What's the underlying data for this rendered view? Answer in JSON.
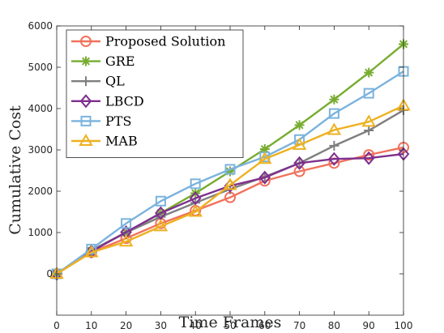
{
  "chart_data": {
    "type": "line",
    "title": "",
    "xlabel": "Time Frames",
    "ylabel": "Cumulative Cost",
    "xlim": [
      0,
      100
    ],
    "ylim": [
      -1000,
      6000
    ],
    "x_ticks": [
      0,
      10,
      20,
      30,
      40,
      50,
      60,
      70,
      80,
      90,
      100
    ],
    "y_ticks": [
      0,
      1000,
      2000,
      3000,
      4000,
      5000,
      6000
    ],
    "grid": false,
    "legend_position": "top-left",
    "x": [
      0,
      10,
      20,
      30,
      40,
      50,
      60,
      70,
      80,
      90,
      100
    ],
    "series": [
      {
        "name": "Proposed Solution",
        "color": "#f0725c",
        "marker": "circle",
        "values": [
          0,
          520,
          860,
          1220,
          1530,
          1850,
          2250,
          2480,
          2680,
          2880,
          3060
        ]
      },
      {
        "name": "GRE",
        "color": "#77ac30",
        "marker": "asterisk",
        "values": [
          0,
          560,
          1000,
          1470,
          1950,
          2480,
          3020,
          3600,
          4220,
          4870,
          5560
        ]
      },
      {
        "name": "QL",
        "color": "#7f7f7f",
        "marker": "plus",
        "values": [
          0,
          570,
          1000,
          1380,
          1720,
          2050,
          2350,
          2680,
          3100,
          3470,
          3960
        ]
      },
      {
        "name": "LBCD",
        "color": "#7e2f8e",
        "marker": "diamond",
        "values": [
          0,
          540,
          1010,
          1470,
          1830,
          2130,
          2330,
          2680,
          2780,
          2800,
          2900
        ]
      },
      {
        "name": "PTS",
        "color": "#7bb3dd",
        "marker": "square",
        "values": [
          0,
          600,
          1220,
          1760,
          2180,
          2530,
          2830,
          3250,
          3880,
          4370,
          4900
        ]
      },
      {
        "name": "MAB",
        "color": "#edb120",
        "marker": "triangle",
        "values": [
          0,
          520,
          780,
          1150,
          1500,
          2150,
          2780,
          3120,
          3480,
          3680,
          4070
        ]
      }
    ]
  }
}
